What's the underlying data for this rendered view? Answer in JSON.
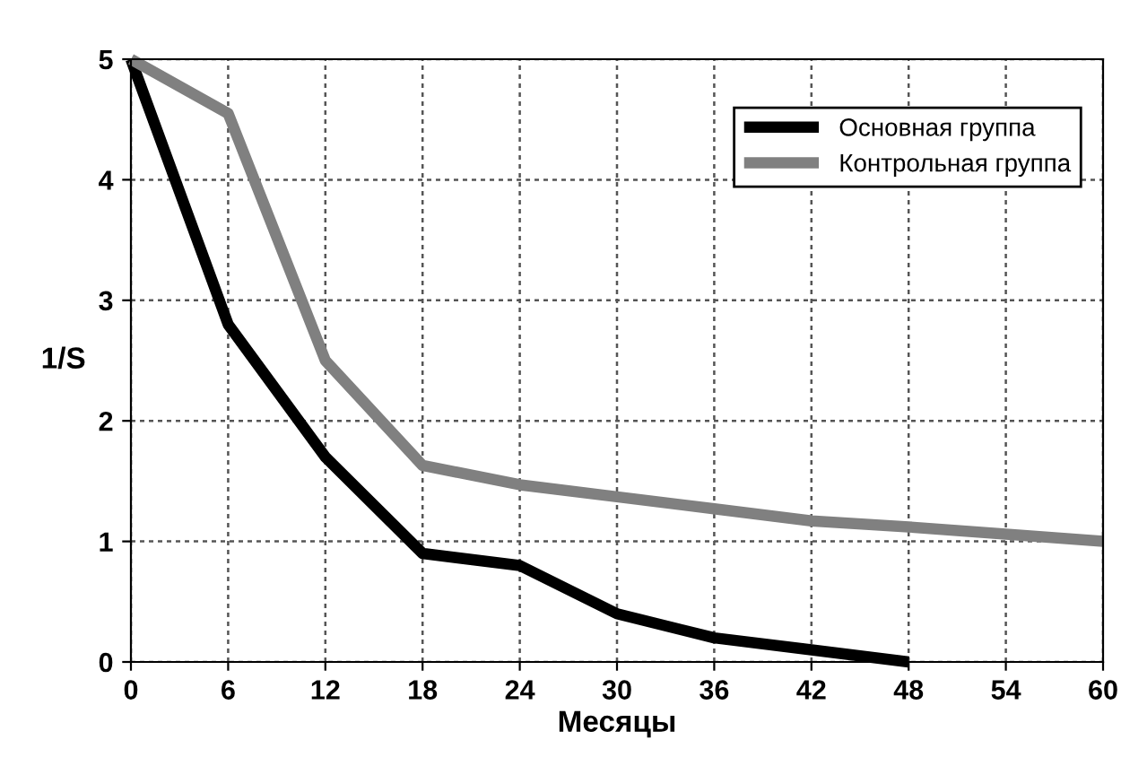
{
  "chart_data": {
    "type": "line",
    "xlabel": "Месяцы",
    "ylabel": "1/S",
    "x": [
      0,
      6,
      12,
      18,
      24,
      30,
      36,
      42,
      48,
      54,
      60
    ],
    "series": [
      {
        "name": "Основная группа",
        "color": "#000000",
        "values": [
          5,
          2.8,
          1.7,
          0.9,
          0.8,
          0.4,
          0.2,
          0.1,
          0,
          null,
          null
        ]
      },
      {
        "name": "Контрольная группа",
        "color": "#808080",
        "values": [
          5,
          4.55,
          2.5,
          1.63,
          1.47,
          1.37,
          1.27,
          1.17,
          1.12,
          1.06,
          1.0
        ]
      }
    ],
    "xlim": [
      0,
      60
    ],
    "xticks": [
      0,
      6,
      12,
      18,
      24,
      30,
      36,
      42,
      48,
      54,
      60
    ],
    "ylim": [
      0,
      5
    ],
    "yticks": [
      0,
      1,
      2,
      3,
      4,
      5
    ],
    "grid": true,
    "legend": "top right",
    "marker": "none",
    "line_style": "solid"
  }
}
